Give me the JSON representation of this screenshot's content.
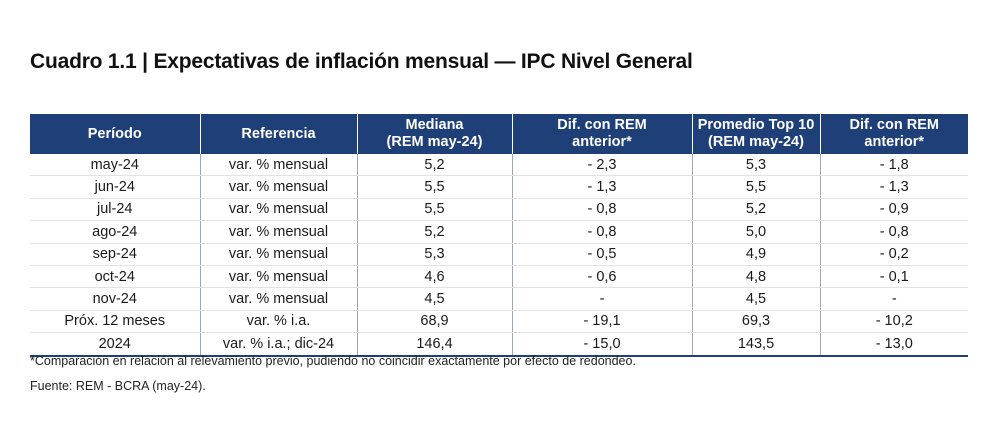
{
  "title": "Cuadro 1.1 | Expectativas de inflación mensual — IPC Nivel General",
  "table": {
    "headers": [
      {
        "line1": "Período",
        "line2": ""
      },
      {
        "line1": "Referencia",
        "line2": ""
      },
      {
        "line1": "Mediana",
        "line2": "(REM may-24)"
      },
      {
        "line1": "Dif. con REM",
        "line2": "anterior*"
      },
      {
        "line1": "Promedio Top 10",
        "line2": "(REM may-24)"
      },
      {
        "line1": "Dif. con REM",
        "line2": "anterior*"
      }
    ],
    "rows": [
      [
        "may-24",
        "var. % mensual",
        "5,2",
        "- 2,3",
        "5,3",
        "- 1,8"
      ],
      [
        "jun-24",
        "var. % mensual",
        "5,5",
        "- 1,3",
        "5,5",
        "- 1,3"
      ],
      [
        "jul-24",
        "var. % mensual",
        "5,5",
        "- 0,8",
        "5,2",
        "- 0,9"
      ],
      [
        "ago-24",
        "var. % mensual",
        "5,2",
        "- 0,8",
        "5,0",
        "- 0,8"
      ],
      [
        "sep-24",
        "var. % mensual",
        "5,3",
        "- 0,5",
        "4,9",
        "- 0,2"
      ],
      [
        "oct-24",
        "var. % mensual",
        "4,6",
        "- 0,6",
        "4,8",
        "- 0,1"
      ],
      [
        "nov-24",
        "var. % mensual",
        "4,5",
        "-",
        "4,5",
        "-"
      ],
      [
        "Próx. 12 meses",
        "var. % i.a.",
        "68,9",
        "- 19,1",
        "69,3",
        "- 10,2"
      ],
      [
        "2024",
        "var. % i.a.; dic-24",
        "146,4",
        "- 15,0",
        "143,5",
        "- 13,0"
      ]
    ]
  },
  "footnote": "*Comparación en relación al relevamiento previo, pudiendo no coincidir exactamente por efecto de redondeo.",
  "source": "Fuente: REM - BCRA (may-24).",
  "colors": {
    "header_bg": "#1f3f78",
    "header_text": "#ffffff"
  }
}
